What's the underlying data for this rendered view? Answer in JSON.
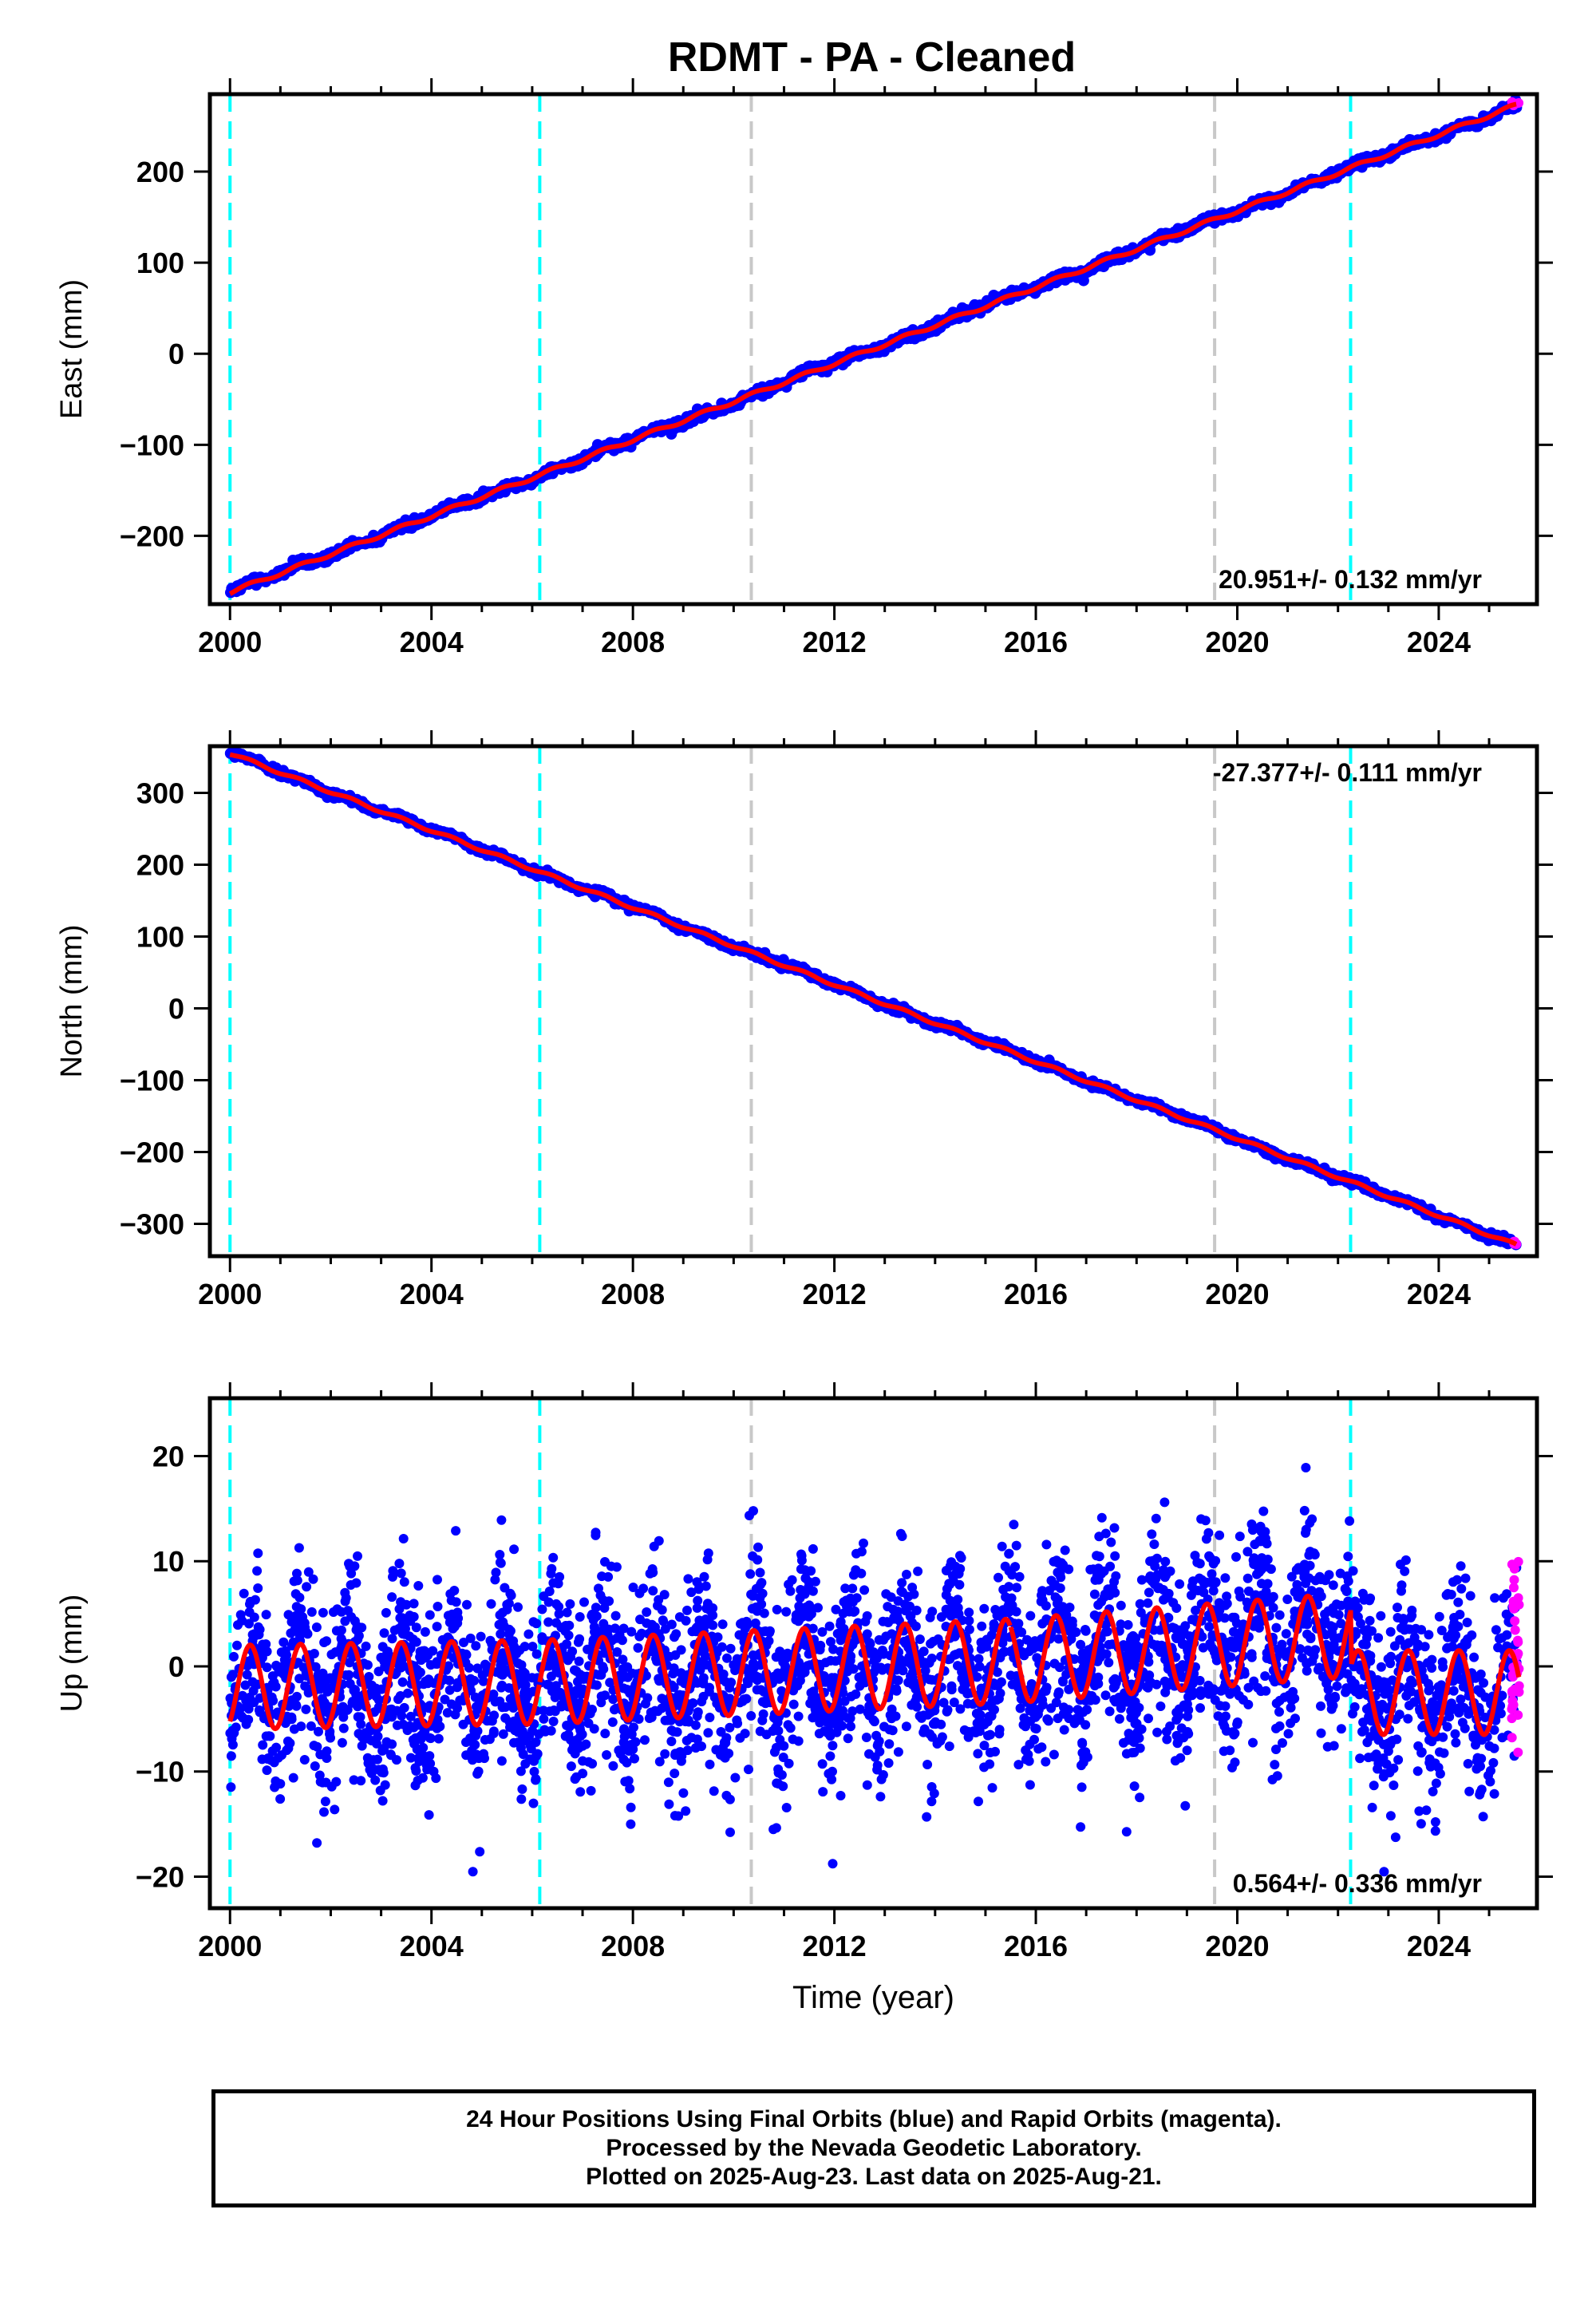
{
  "title": "RDMT  - PA - Cleaned",
  "footer": {
    "line1": "24 Hour Positions Using Final Orbits (blue) and Rapid Orbits (magenta).",
    "line2": "Processed by the Nevada Geodetic Laboratory.",
    "line3": "Plotted on 2025-Aug-23. Last data on 2025-Aug-21."
  },
  "colors": {
    "final_orbits": "#0000ff",
    "rapid_orbits": "#ff00ff",
    "model": "#ff0000",
    "equipment_change": "#00ffff",
    "earthquake": "#c8c8c8"
  },
  "chart_data": [
    {
      "type": "scatter",
      "ylabel": "East (mm)",
      "xlim": [
        1999.6,
        2025.95
      ],
      "ylim": [
        -275,
        285
      ],
      "xticks": [
        2000,
        2004,
        2008,
        2012,
        2016,
        2020,
        2024
      ],
      "yticks": [
        -200,
        -100,
        0,
        100,
        200
      ],
      "rate_label": "20.951+/- 0.132 mm/yr",
      "rate_position": "bottom-right",
      "cyan_lines": [
        2000.0,
        2006.15,
        2022.25
      ],
      "gray_lines": [
        2010.35,
        2019.55
      ],
      "line_start": [
        2000.0,
        -262
      ],
      "line_end": [
        2025.55,
        273
      ],
      "seasonal_amp": 2
    },
    {
      "type": "scatter",
      "ylabel": "North (mm)",
      "xlim": [
        1999.6,
        2025.95
      ],
      "ylim": [
        -345,
        365
      ],
      "xticks": [
        2000,
        2004,
        2008,
        2012,
        2016,
        2020,
        2024
      ],
      "yticks": [
        -300,
        -200,
        -100,
        0,
        100,
        200,
        300
      ],
      "rate_label": "-27.377+/- 0.111 mm/yr",
      "rate_position": "top-right",
      "cyan_lines": [
        2000.0,
        2006.15,
        2022.25
      ],
      "gray_lines": [
        2010.35,
        2019.55
      ],
      "line_start": [
        2000.0,
        355
      ],
      "line_end": [
        2025.55,
        -330
      ],
      "seasonal_amp": 2
    },
    {
      "type": "scatter",
      "ylabel": "Up (mm)",
      "xlabel": "Time (year)",
      "xlim": [
        1999.6,
        2025.95
      ],
      "ylim": [
        -23,
        25.5
      ],
      "xticks": [
        2000,
        2004,
        2008,
        2012,
        2016,
        2020,
        2024
      ],
      "yticks": [
        -20,
        -10,
        0,
        10,
        20
      ],
      "rate_label": "0.564+/- 0.336 mm/yr",
      "rate_position": "bottom-right",
      "cyan_lines": [
        2000.0,
        2006.15,
        2022.25
      ],
      "gray_lines": [
        2010.35,
        2019.55
      ],
      "seasonal_amp": 4,
      "trend_segments": [
        {
          "start": 2000.0,
          "end": 2006.15,
          "mean_start": -2.0,
          "mean_end": -1.5
        },
        {
          "start": 2006.15,
          "end": 2015.5,
          "mean_start": -1.5,
          "mean_end": 0.5
        },
        {
          "start": 2015.5,
          "end": 2022.25,
          "mean_start": 0.5,
          "mean_end": 3.0
        },
        {
          "start": 2022.25,
          "end": 2025.6,
          "mean_start": -2.5,
          "mean_end": -2.5
        }
      ]
    }
  ]
}
